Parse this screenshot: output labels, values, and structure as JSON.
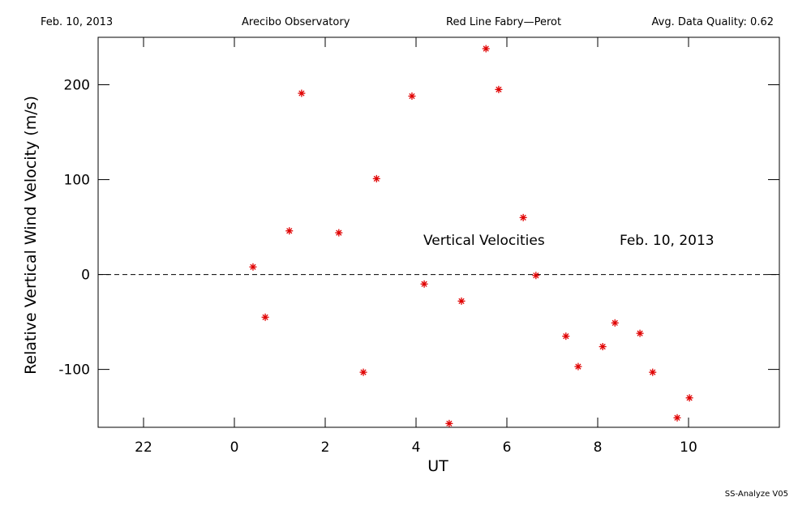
{
  "header": {
    "date": "Feb. 10, 2013",
    "site": "Arecibo Observatory",
    "instrument": "Red Line Fabry—Perot",
    "quality": "Avg. Data Quality: 0.62"
  },
  "footer": "SS-Analyze V05",
  "chart_data": {
    "type": "scatter",
    "x_label": "UT",
    "y_label": "Relative Vertical Wind Velocity (m/s)",
    "annotations": [
      "Vertical Velocities",
      "Feb. 10, 2013"
    ],
    "series": [
      {
        "name": "Vertical Velocities",
        "color": "#e00000",
        "x": [
          0.41,
          0.68,
          1.21,
          1.48,
          2.3,
          2.84,
          3.13,
          3.91,
          4.18,
          4.73,
          5.0,
          5.54,
          5.82,
          6.36,
          6.64,
          7.3,
          7.57,
          8.11,
          8.38,
          8.93,
          9.21,
          9.75,
          10.02
        ],
        "values": [
          8,
          -45,
          46,
          191,
          44,
          -103,
          101,
          188,
          -10,
          -157,
          -28,
          238,
          195,
          60,
          -1,
          -65,
          -97,
          -76,
          -51,
          -62,
          -103,
          -151,
          -130
        ]
      }
    ],
    "xlim": [
      -3,
      12
    ],
    "xticks": [
      {
        "value": -2,
        "label": "22"
      },
      0,
      2,
      4,
      6,
      8,
      10
    ],
    "ylim": [
      -161,
      250
    ],
    "yticks": [
      -100,
      0,
      100,
      200
    ],
    "reference_line": 0
  }
}
